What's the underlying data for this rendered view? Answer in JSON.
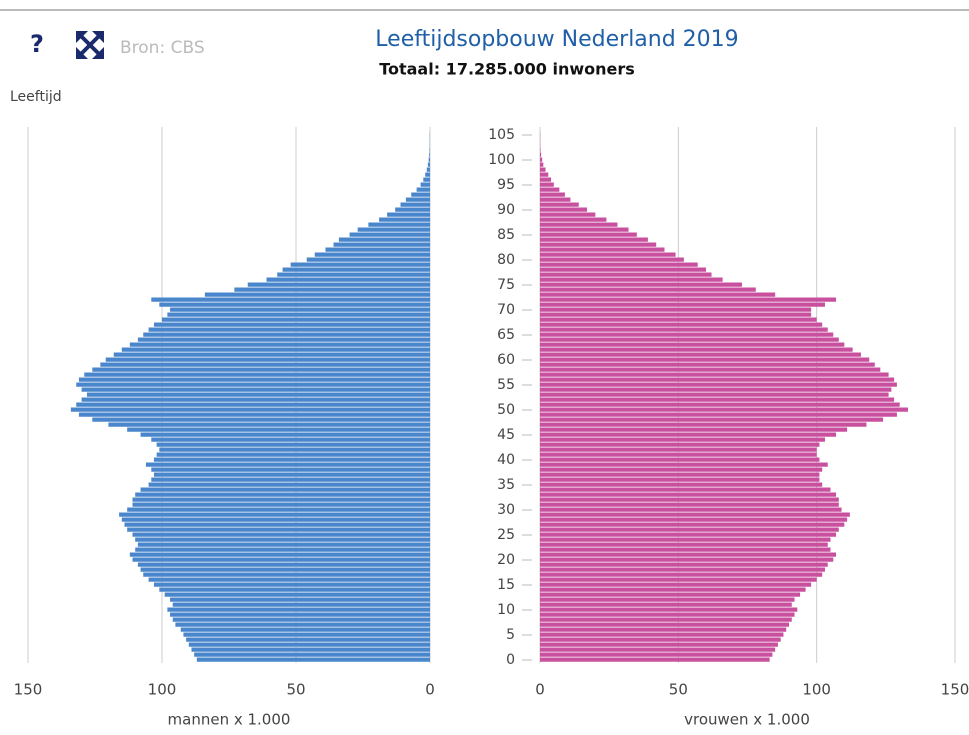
{
  "chart_data": {
    "type": "pyramid",
    "help": "?",
    "source": "Bron: CBS",
    "title": "Leeftijdsopbouw Nederland 2019",
    "subtitle": "Totaal: 17.285.000 inwoners",
    "ylabel": "Leeftijd",
    "ylim": [
      0,
      105
    ],
    "yticks": [
      0,
      5,
      10,
      15,
      20,
      25,
      30,
      35,
      40,
      45,
      50,
      55,
      60,
      65,
      70,
      75,
      80,
      85,
      90,
      95,
      100,
      105
    ],
    "y": [
      0,
      1,
      2,
      3,
      4,
      5,
      6,
      7,
      8,
      9,
      10,
      11,
      12,
      13,
      14,
      15,
      16,
      17,
      18,
      19,
      20,
      21,
      22,
      23,
      24,
      25,
      26,
      27,
      28,
      29,
      30,
      31,
      32,
      33,
      34,
      35,
      36,
      37,
      38,
      39,
      40,
      41,
      42,
      43,
      44,
      45,
      46,
      47,
      48,
      49,
      50,
      51,
      52,
      53,
      54,
      55,
      56,
      57,
      58,
      59,
      60,
      61,
      62,
      63,
      64,
      65,
      66,
      67,
      68,
      69,
      70,
      71,
      72,
      73,
      74,
      75,
      76,
      77,
      78,
      79,
      80,
      81,
      82,
      83,
      84,
      85,
      86,
      87,
      88,
      89,
      90,
      91,
      92,
      93,
      94,
      95,
      96,
      97,
      98,
      99,
      100,
      101,
      102,
      103,
      104,
      105
    ],
    "grid": true,
    "left": {
      "name": "mannen x 1.000",
      "color": "#4a86cc",
      "xlim": [
        0,
        150
      ],
      "xticks": [
        0,
        50,
        100,
        150
      ],
      "values": [
        87,
        88,
        89,
        90,
        91,
        92,
        93,
        95,
        96,
        97,
        98,
        96,
        97,
        99,
        101,
        103,
        105,
        107,
        108,
        109,
        111,
        112,
        110,
        109,
        110,
        111,
        113,
        114,
        115,
        116,
        113,
        111,
        111,
        110,
        108,
        105,
        104,
        103,
        104,
        106,
        103,
        102,
        101,
        102,
        104,
        108,
        113,
        120,
        126,
        131,
        134,
        132,
        130,
        128,
        130,
        132,
        131,
        129,
        126,
        123,
        121,
        118,
        115,
        112,
        109,
        107,
        105,
        103,
        100,
        98,
        97,
        101,
        104,
        84,
        73,
        68,
        61,
        57,
        55,
        52,
        46,
        43,
        39,
        36,
        34,
        30,
        27,
        23,
        19,
        16,
        13,
        11,
        9,
        7,
        5,
        3.5,
        2.5,
        1.8,
        1.2,
        0.8,
        0.5,
        0.3,
        0.2,
        0.1,
        0.1,
        0.1
      ]
    },
    "right": {
      "name": "vrouwen x 1.000",
      "color": "#c9509f",
      "xlim": [
        0,
        150
      ],
      "xticks": [
        0,
        50,
        100,
        150
      ],
      "values": [
        83,
        84,
        85,
        86,
        87,
        88,
        89,
        90,
        91,
        92,
        93,
        91,
        92,
        94,
        96,
        98,
        100,
        102,
        103,
        104,
        106,
        107,
        105,
        104,
        105,
        107,
        108,
        110,
        111,
        112,
        109,
        108,
        108,
        107,
        105,
        102,
        101,
        101,
        102,
        104,
        101,
        100,
        100,
        101,
        103,
        107,
        111,
        118,
        124,
        129,
        133,
        130,
        128,
        126,
        127,
        129,
        128,
        126,
        123,
        121,
        119,
        116,
        113,
        110,
        108,
        106,
        104,
        102,
        100,
        98,
        98,
        103,
        107,
        85,
        78,
        73,
        66,
        62,
        60,
        57,
        52,
        49,
        45,
        42,
        39,
        35,
        32,
        28,
        24,
        20,
        17,
        14,
        11,
        9,
        7,
        5,
        4,
        3,
        2,
        1.2,
        0.8,
        0.4,
        0.2,
        0.1,
        0.1,
        0.1
      ]
    }
  }
}
